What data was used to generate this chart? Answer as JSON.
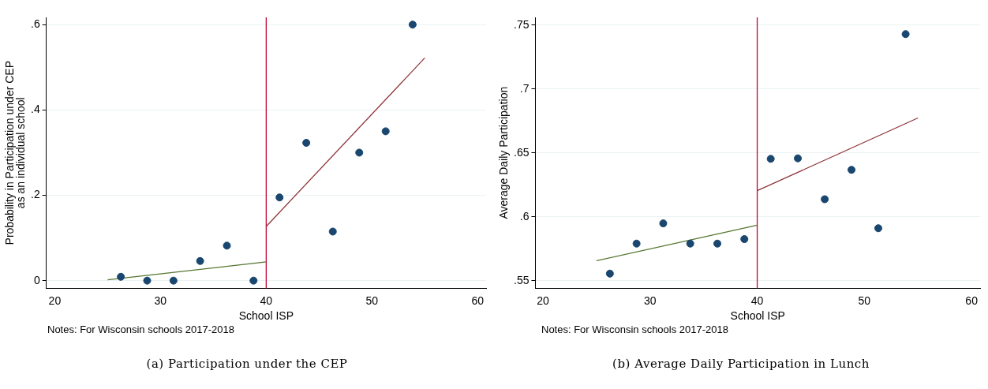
{
  "chart_data": [
    {
      "type": "scatter",
      "xlabel": "School ISP",
      "ylabel": "Probability in Participation under CEP\nas an individual school",
      "xlim": [
        19.2,
        60.8
      ],
      "ylim": [
        -0.018,
        0.617
      ],
      "xticks": [
        20,
        30,
        40,
        50,
        60
      ],
      "yticks": [
        0,
        {
          "value": 0.2,
          "label": ".2"
        },
        {
          "value": 0.4,
          "label": ".4"
        },
        {
          "value": 0.6,
          "label": ".6"
        }
      ],
      "grid": "y",
      "legend": false,
      "line_style": "solid",
      "series": [
        {
          "marker": "circle",
          "color": "#1a476f",
          "x": [
            26.25,
            28.74,
            31.23,
            33.75,
            36.28,
            38.8,
            41.26,
            43.79,
            46.3,
            48.8,
            51.3,
            53.85
          ],
          "values": [
            0.009,
            0,
            0,
            0.046,
            0.082,
            0,
            0.195,
            0.323,
            0.115,
            0.3,
            0.35,
            0.6
          ]
        },
        {
          "type": "line",
          "color": "#55752f",
          "x": [
            25,
            40
          ],
          "values": [
            0.002,
            0.044
          ]
        },
        {
          "type": "line",
          "color": "#90353b",
          "x": [
            40,
            55
          ],
          "values": [
            0.127,
            0.522
          ]
        }
      ],
      "ref_lines": [
        {
          "axis": "x",
          "value": 40,
          "color": "#c10534"
        }
      ],
      "annotations": [
        "Notes: For Wisconsin schools 2017-2018",
        "(a) Participation under the CEP"
      ]
    },
    {
      "type": "scatter",
      "xlabel": "School ISP",
      "ylabel": "Average Daily Participation",
      "xlim": [
        19.3,
        60.8
      ],
      "ylim": [
        0.544,
        0.756
      ],
      "xticks": [
        20,
        30,
        40,
        50,
        60
      ],
      "yticks": [
        {
          "value": 0.55,
          "label": ".55"
        },
        {
          "value": 0.6,
          "label": ".6"
        },
        {
          "value": 0.65,
          "label": ".65"
        },
        {
          "value": 0.7,
          "label": ".7"
        },
        {
          "value": 0.75,
          "label": ".75"
        }
      ],
      "grid": "y",
      "legend": false,
      "line_style": "solid",
      "series": [
        {
          "marker": "circle",
          "color": "#1a476f",
          "x": [
            26.25,
            28.74,
            31.23,
            33.75,
            36.28,
            38.8,
            41.26,
            43.79,
            46.3,
            48.8,
            51.3,
            53.85
          ],
          "values": [
            0.5555,
            0.579,
            0.5948,
            0.579,
            0.579,
            0.5825,
            0.6453,
            0.6457,
            0.6137,
            0.6367,
            0.591,
            0.7429
          ]
        },
        {
          "type": "line",
          "color": "#55752f",
          "x": [
            25,
            40
          ],
          "values": [
            0.5656,
            0.5934
          ]
        },
        {
          "type": "line",
          "color": "#90353b",
          "x": [
            40,
            55
          ],
          "values": [
            0.6204,
            0.6773
          ]
        }
      ],
      "ref_lines": [
        {
          "axis": "x",
          "value": 40,
          "color": "#c10534"
        }
      ],
      "annotations": [
        "Notes: For Wisconsin schools 2017-2018",
        "(b) Average Daily Participation in Lunch"
      ]
    }
  ]
}
